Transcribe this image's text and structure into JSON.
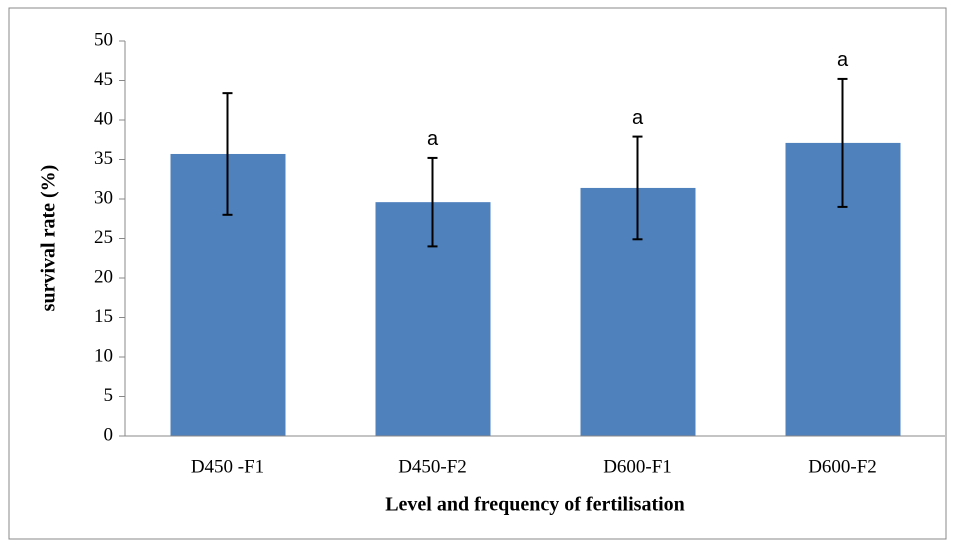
{
  "chart_data": {
    "type": "bar",
    "y_label": "survival rate (%)",
    "x_label": "Level and frequency of fertilisation",
    "categories": [
      "D450 -F1",
      "D450-F2",
      "D600-F1",
      "D600-F2"
    ],
    "values": [
      35.7,
      29.6,
      31.4,
      37.1
    ],
    "errors": [
      7.7,
      5.6,
      6.5,
      8.1
    ],
    "annotations": [
      null,
      "a",
      "a",
      "a"
    ],
    "color": "#4f81bd",
    "ylim": [
      0,
      50
    ],
    "yticks": [
      0,
      5,
      10,
      15,
      20,
      25,
      30,
      35,
      40,
      45,
      50
    ]
  }
}
